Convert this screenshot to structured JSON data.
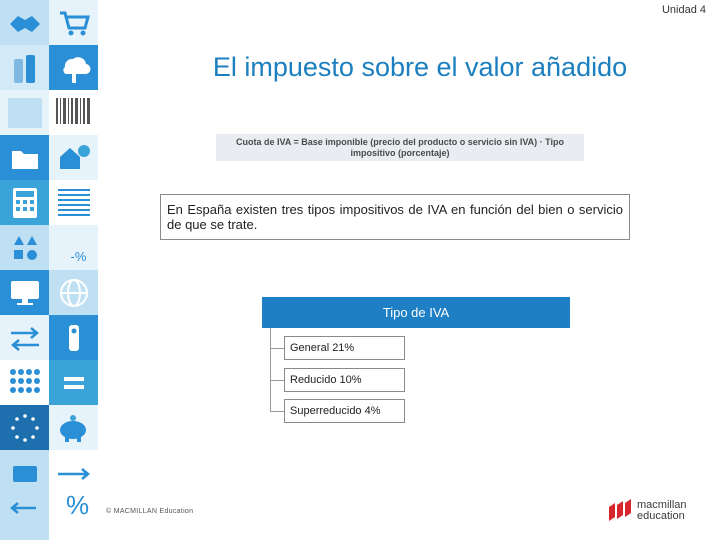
{
  "header": {
    "unit_label": "Unidad 4"
  },
  "slide": {
    "title": "El impuesto sobre el valor añadido",
    "formula": "Cuota de IVA = Base imponible (precio del producto o servicio sin IVA) · Tipo impositivo (porcentaje)",
    "intro": "En España existen tres tipos impositivos de IVA en función del bien o servicio de que se trate.",
    "iva": {
      "header": "Tipo de IVA",
      "items": [
        "General 21%",
        "Reducido 10%",
        "Superreducido 4%"
      ]
    }
  },
  "sidebar": {
    "percent_label": "-%",
    "icons": [
      "handshake-icon",
      "shopping-cart-icon",
      "bottles-icon",
      "cloud-server-icon",
      "barcode-icon",
      "barcode-icon",
      "folder-icon",
      "house-money-icon",
      "calculator-icon",
      "document-lines-icon",
      "shapes-icon",
      "percent-icon",
      "monitor-icon",
      "globe-icon",
      "arrows-icon",
      "people-icon",
      "grid-icon",
      "piggy-bank-icon",
      "card-icon",
      "percent-icon"
    ],
    "colors": {
      "blue": "#2a8fd6",
      "light_blue": "#bfe0f3",
      "teal": "#3aa3d8",
      "pale": "#e6f3fb"
    }
  },
  "footer": {
    "copyright": "© MACMILLAN Education",
    "logo_line1": "macmillan",
    "logo_line2": "education",
    "logo_color": "#d7262d"
  }
}
